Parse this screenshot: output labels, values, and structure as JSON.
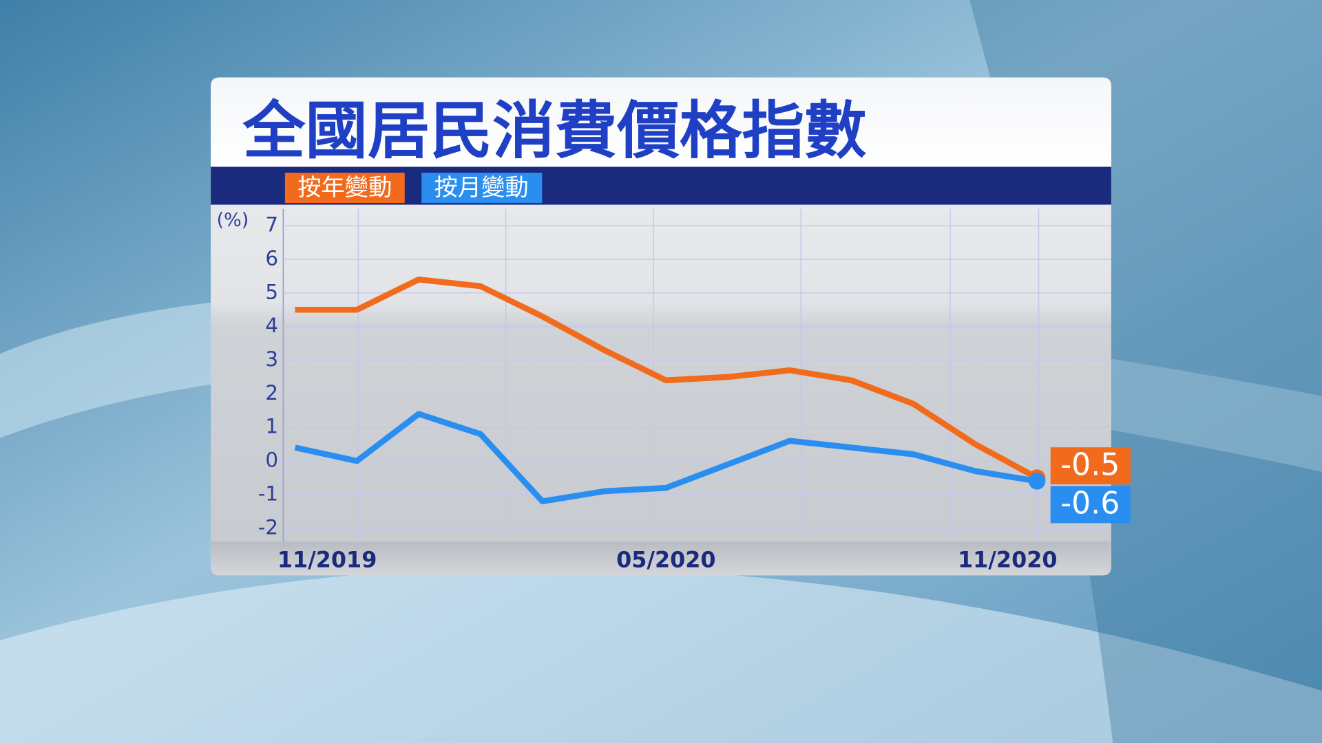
{
  "chart_data": {
    "type": "line",
    "title": "全國居民消費價格指數",
    "y_label": "(%)",
    "categories": [
      "11/2019",
      null,
      null,
      null,
      null,
      null,
      "05/2020",
      null,
      null,
      null,
      null,
      null,
      "11/2020"
    ],
    "series": [
      {
        "name": "按年變動",
        "color": "#f26a1b",
        "values": [
          4.5,
          4.5,
          5.4,
          5.2,
          4.3,
          3.3,
          2.4,
          2.5,
          2.7,
          2.4,
          1.7,
          0.5,
          -0.5
        ]
      },
      {
        "name": "按月變動",
        "color": "#2a8ef0",
        "values": [
          0.4,
          0.0,
          1.4,
          0.8,
          -1.2,
          -0.9,
          -0.8,
          -0.1,
          0.6,
          0.4,
          0.2,
          -0.3,
          -0.6
        ]
      }
    ],
    "ylim": [
      -2.4,
      7.5
    ],
    "yticks": [
      -2,
      -1,
      0,
      1,
      2,
      3,
      4,
      5,
      6,
      7
    ],
    "grid": true
  }
}
